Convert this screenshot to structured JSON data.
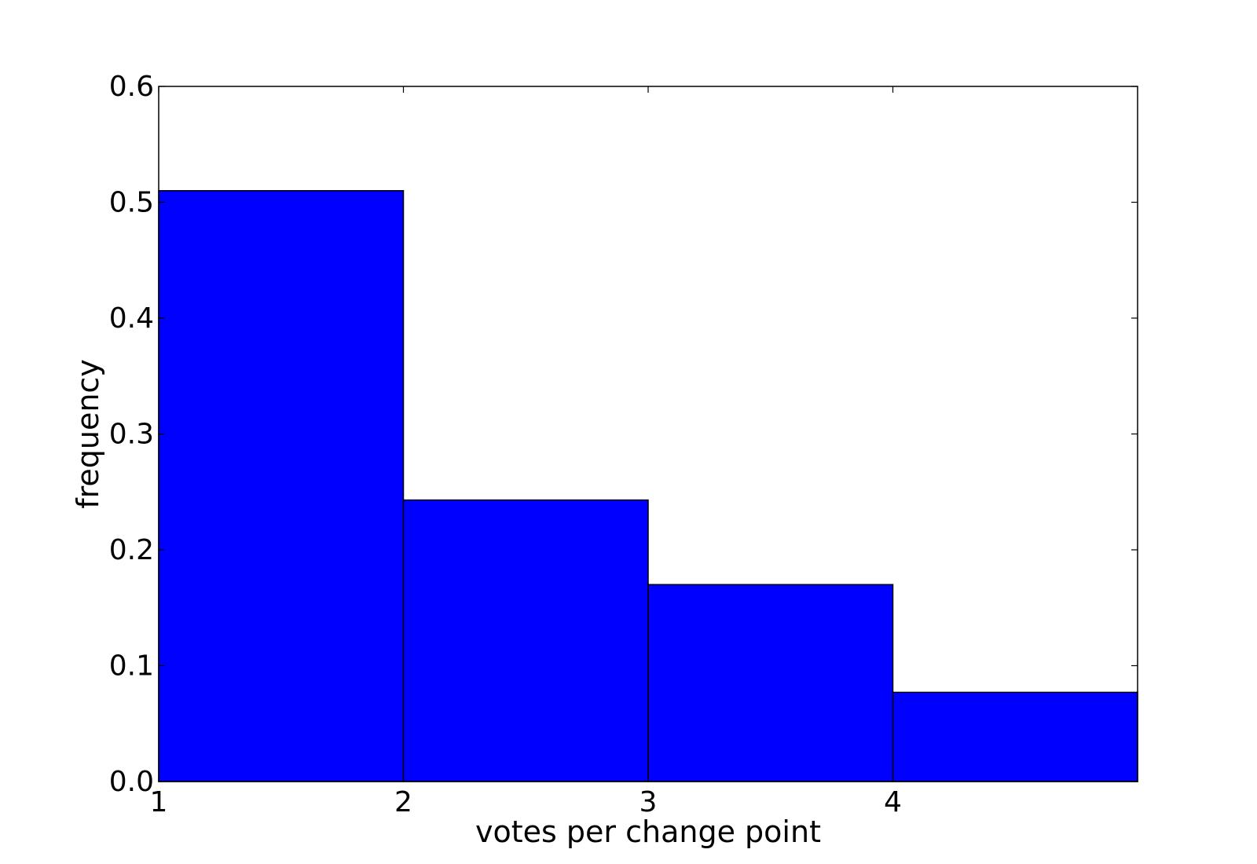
{
  "chart_data": {
    "type": "bar",
    "bins": [
      {
        "x0": 1,
        "x1": 2,
        "value": 0.51
      },
      {
        "x0": 2,
        "x1": 3,
        "value": 0.243
      },
      {
        "x0": 3,
        "x1": 4,
        "value": 0.17
      },
      {
        "x0": 4,
        "x1": 5,
        "value": 0.077
      }
    ],
    "xlabel": "votes per change point",
    "ylabel": "frequency",
    "xlim": [
      1,
      5
    ],
    "ylim": [
      0,
      0.6
    ],
    "xticks": [
      1,
      2,
      3,
      4
    ],
    "xtick_labels": [
      "1",
      "2",
      "3",
      "4"
    ],
    "yticks": [
      0.0,
      0.1,
      0.2,
      0.3,
      0.4,
      0.5,
      0.6
    ],
    "ytick_labels": [
      "0.0",
      "0.1",
      "0.2",
      "0.3",
      "0.4",
      "0.5",
      "0.6"
    ],
    "bar_color": "#0000ff",
    "edge_color": "#000000",
    "grid": false,
    "legend": "none"
  }
}
